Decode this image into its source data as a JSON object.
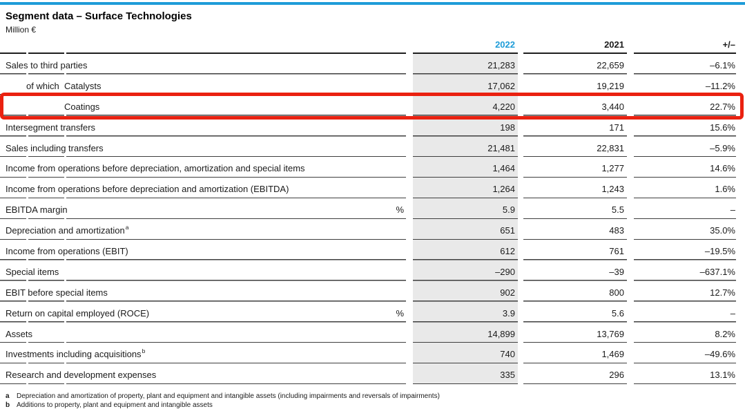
{
  "colors": {
    "accent_blue": "#1e9cd8",
    "highlight_red": "#ea2110",
    "column_2022_gray": "#e9e9e9"
  },
  "header": {
    "title": "Segment data – Surface Technologies",
    "unit_label": "Million €"
  },
  "table": {
    "columns": {
      "y2022": "2022",
      "y2021": "2021",
      "change": "+/–"
    },
    "rows": [
      {
        "prefix": "",
        "label": "Sales to third parties",
        "sup": "",
        "unit": "",
        "indent": 0,
        "v2022": "21,283",
        "v2021": "22,659",
        "change": "–6.1%",
        "highlight": false
      },
      {
        "prefix": "of which",
        "label": "Catalysts",
        "sup": "",
        "unit": "",
        "indent": 1,
        "v2022": "17,062",
        "v2021": "19,219",
        "change": "–11.2%",
        "highlight": false
      },
      {
        "prefix": "",
        "label": "Coatings",
        "sup": "",
        "unit": "",
        "indent": 1,
        "v2022": "4,220",
        "v2021": "3,440",
        "change": "22.7%",
        "highlight": true
      },
      {
        "prefix": "",
        "label": "Intersegment transfers",
        "sup": "",
        "unit": "",
        "indent": 0,
        "v2022": "198",
        "v2021": "171",
        "change": "15.6%",
        "highlight": false
      },
      {
        "prefix": "",
        "label": "Sales including transfers",
        "sup": "",
        "unit": "",
        "indent": 0,
        "v2022": "21,481",
        "v2021": "22,831",
        "change": "–5.9%",
        "highlight": false
      },
      {
        "prefix": "",
        "label": "Income from operations before depreciation, amortization and special items",
        "sup": "",
        "unit": "",
        "indent": 0,
        "v2022": "1,464",
        "v2021": "1,277",
        "change": "14.6%",
        "highlight": false
      },
      {
        "prefix": "",
        "label": "Income from operations before depreciation and amortization (EBITDA)",
        "sup": "",
        "unit": "",
        "indent": 0,
        "v2022": "1,264",
        "v2021": "1,243",
        "change": "1.6%",
        "highlight": false
      },
      {
        "prefix": "",
        "label": "EBITDA margin",
        "sup": "",
        "unit": "%",
        "indent": 0,
        "v2022": "5.9",
        "v2021": "5.5",
        "change": "–",
        "highlight": false
      },
      {
        "prefix": "",
        "label": "Depreciation and amortization",
        "sup": "a",
        "unit": "",
        "indent": 0,
        "v2022": "651",
        "v2021": "483",
        "change": "35.0%",
        "highlight": false
      },
      {
        "prefix": "",
        "label": "Income from operations (EBIT)",
        "sup": "",
        "unit": "",
        "indent": 0,
        "v2022": "612",
        "v2021": "761",
        "change": "–19.5%",
        "highlight": false
      },
      {
        "prefix": "",
        "label": "Special items",
        "sup": "",
        "unit": "",
        "indent": 0,
        "v2022": "–290",
        "v2021": "–39",
        "change": "–637.1%",
        "highlight": false
      },
      {
        "prefix": "",
        "label": "EBIT before special items",
        "sup": "",
        "unit": "",
        "indent": 0,
        "v2022": "902",
        "v2021": "800",
        "change": "12.7%",
        "highlight": false
      },
      {
        "prefix": "",
        "label": "Return on capital employed (ROCE)",
        "sup": "",
        "unit": "%",
        "indent": 0,
        "v2022": "3.9",
        "v2021": "5.6",
        "change": "–",
        "highlight": false
      },
      {
        "prefix": "",
        "label": "Assets",
        "sup": "",
        "unit": "",
        "indent": 0,
        "v2022": "14,899",
        "v2021": "13,769",
        "change": "8.2%",
        "highlight": false
      },
      {
        "prefix": "",
        "label": "Investments including acquisitions",
        "sup": "b",
        "unit": "",
        "indent": 0,
        "v2022": "740",
        "v2021": "1,469",
        "change": "–49.6%",
        "highlight": false
      },
      {
        "prefix": "",
        "label": "Research and development expenses",
        "sup": "",
        "unit": "",
        "indent": 0,
        "v2022": "335",
        "v2021": "296",
        "change": "13.1%",
        "highlight": false
      }
    ]
  },
  "footnotes": [
    {
      "marker": "a",
      "text": "Depreciation and amortization of property, plant and equipment and intangible assets (including impairments and reversals of impairments)"
    },
    {
      "marker": "b",
      "text": "Additions to property, plant and equipment and intangible assets"
    }
  ],
  "annotation": {
    "highlighted_row": "Coatings"
  }
}
